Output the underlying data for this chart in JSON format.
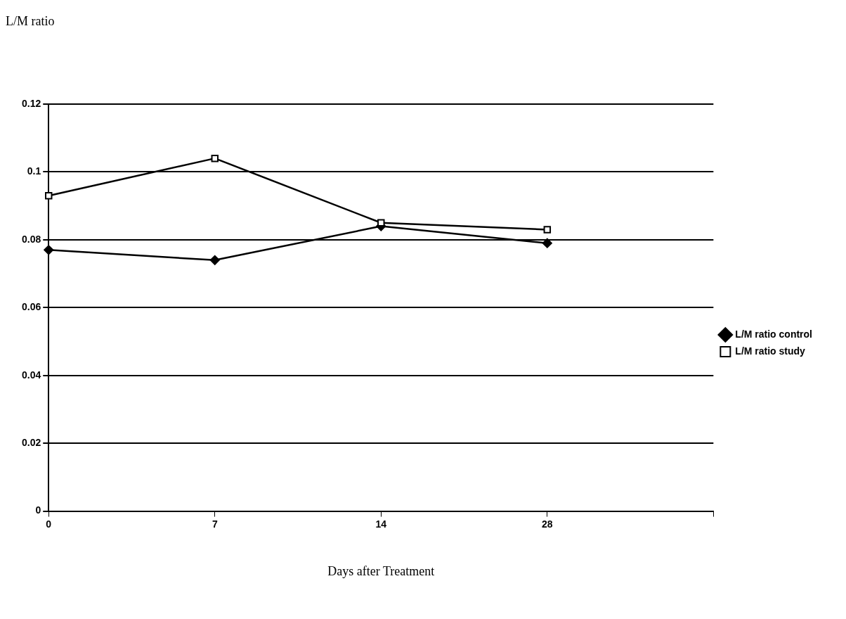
{
  "chart_data": {
    "type": "line",
    "annotations": [
      "L/M ratio"
    ],
    "xlabel": "Days after Treatment",
    "categories": [
      "0",
      "7",
      "14",
      "28",
      null
    ],
    "series": [
      {
        "name": "L/M ratio control",
        "color": "#000000",
        "marker": "diamond",
        "values": [
          0.077,
          0.074,
          0.084,
          0.079,
          null
        ]
      },
      {
        "name": "L/M ratio study",
        "color": "#000000",
        "marker": "square",
        "values": [
          0.093,
          0.104,
          0.085,
          0.083,
          null
        ]
      }
    ],
    "ylim": [
      0,
      0.12
    ],
    "yticks": [
      0,
      0.02,
      0.04,
      0.06,
      0.08,
      0.1,
      0.12
    ],
    "grid": "y",
    "legend": "right",
    "line_style": "solid"
  }
}
